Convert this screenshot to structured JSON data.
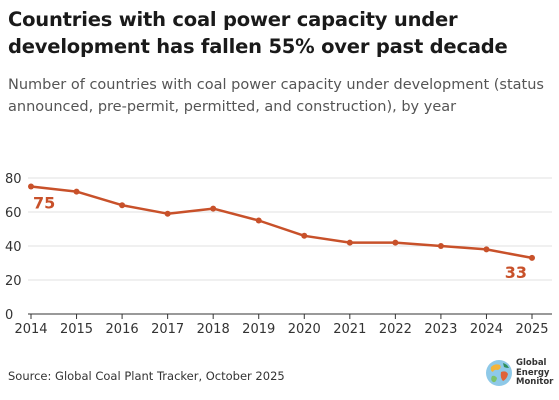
{
  "title": "Countries with coal power capacity under development has fallen 55% over past decade",
  "subtitle": "Number of countries with coal power capacity under development (status announced, pre-permit, permitted, and construction), by year",
  "source": "Source: Global Coal Plant Tracker, October 2025",
  "logo": {
    "line1": "Global",
    "line2": "Energy",
    "line3": "Monitor"
  },
  "colors": {
    "series": "#c8512a",
    "grid": "#e0e0e0",
    "axis": "#333333"
  },
  "chart_data": {
    "type": "line",
    "title": "Countries with coal power capacity under development has fallen 55% over past decade",
    "subtitle": "Number of countries with coal power capacity under development (status announced, pre-permit, permitted, and construction), by year",
    "xlabel": "",
    "ylabel": "",
    "x": [
      "2014",
      "2015",
      "2016",
      "2017",
      "2018",
      "2019",
      "2020",
      "2021",
      "2022",
      "2023",
      "2024",
      "2025"
    ],
    "series": [
      {
        "values": [
          75,
          72,
          64,
          59,
          62,
          55,
          46,
          42,
          42,
          40,
          38,
          33
        ]
      }
    ],
    "ylim": [
      0,
      80
    ],
    "yticks": [
      0,
      20,
      40,
      60,
      80
    ],
    "grid": true,
    "legend": "none",
    "annotations": [
      {
        "x": "2014",
        "text": "75"
      },
      {
        "x": "2025",
        "text": "33"
      }
    ]
  }
}
